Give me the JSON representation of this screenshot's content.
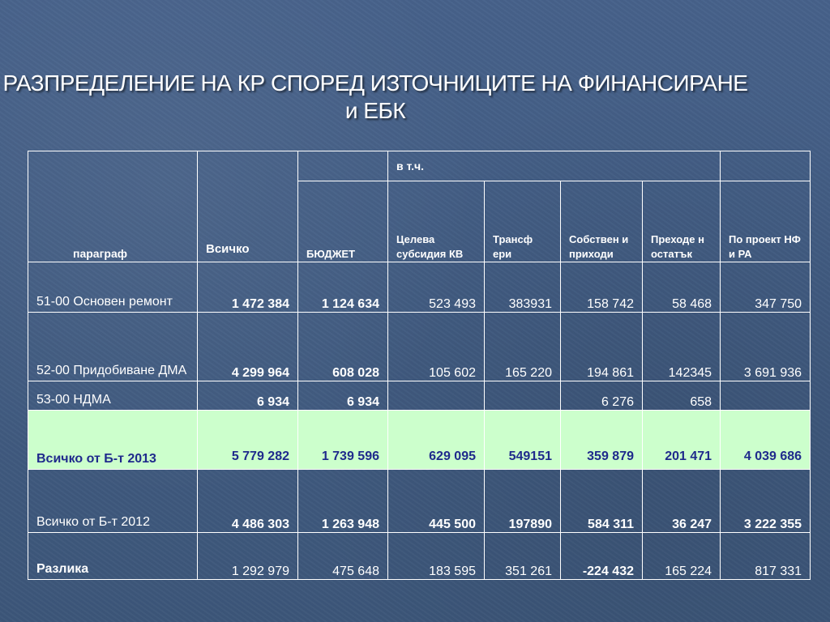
{
  "title": {
    "line1": "РАЗПРЕДЕЛЕНИЕ НА КР СПОРЕД ИЗТОЧНИЦИТЕ НА ФИНАНСИРАНЕ",
    "line2": "и ЕБК"
  },
  "headers": {
    "paragraph": "параграф",
    "total": "Всичко",
    "budget": "БЮДЖЕТ",
    "incl": "в т.ч.",
    "target": "Целева субсидия КВ",
    "transfers": "Трансф ери",
    "own": "Собствен и приходи",
    "carry": "Преходе н остатък",
    "project": "По проект НФ и РА"
  },
  "rows": [
    {
      "label": "51-00 Основен ремонт",
      "total": "1 472 384",
      "budget": "1 124 634",
      "target": "523 493",
      "transfers": "383931",
      "own": "158 742",
      "carry": "58 468",
      "project": "347 750"
    },
    {
      "label": "52-00 Придобиване ДМА",
      "total": "4 299 964",
      "budget": "608 028",
      "target": "105 602",
      "transfers": "165 220",
      "own": "194 861",
      "carry": "142345",
      "project": "3 691 936"
    },
    {
      "label": "53-00 НДМА",
      "total": "6 934",
      "budget": "6 934",
      "target": "",
      "transfers": "",
      "own": "6 276",
      "carry": "658",
      "project": ""
    },
    {
      "label": "Всичко от Б-т 2013",
      "total": "5 779 282",
      "budget": "1 739 596",
      "target": "629 095",
      "transfers": "549151",
      "own": "359 879",
      "carry": "201 471",
      "project": "4 039 686"
    },
    {
      "label": "Всичко от Б-т 2012",
      "total": "4 486 303",
      "budget": "1 263 948",
      "target": "445 500",
      "transfers": "197890",
      "own": "584 311",
      "carry": "36 247",
      "project": "3 222 355"
    },
    {
      "label": "Разлика",
      "total": "1 292 979",
      "budget": "475 648",
      "target": "183 595",
      "transfers": "351 261",
      "own": "-224 432",
      "carry": "165 224",
      "project": "817 331"
    }
  ],
  "colors": {
    "background": "#3f5a7f",
    "highlight_row": "#ccffcc",
    "highlight_text": "#1f2a8c"
  }
}
